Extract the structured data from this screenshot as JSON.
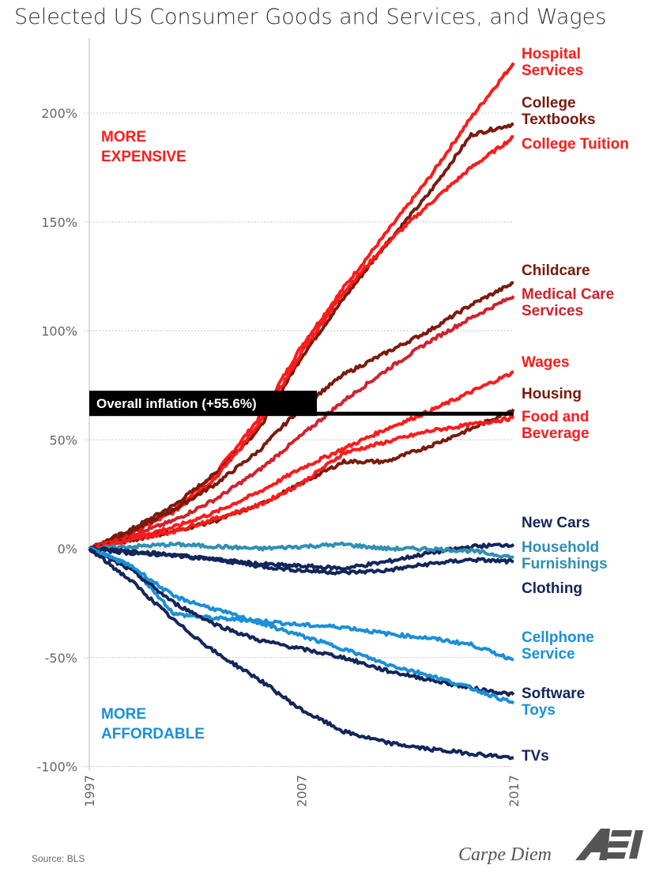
{
  "chart_data": {
    "type": "line",
    "title": "Selected US Consumer Goods and Services, and Wages",
    "xlabel": "",
    "ylabel": "",
    "x": [
      1997,
      1999,
      2001,
      2003,
      2005,
      2007,
      2009,
      2011,
      2013,
      2015,
      2017
    ],
    "xlim": [
      1997,
      2017
    ],
    "ylim": [
      -100,
      225
    ],
    "x_ticks": [
      "1997",
      "2007",
      "2017"
    ],
    "y_ticks": [
      {
        "value": 200,
        "label": "200%"
      },
      {
        "value": 150,
        "label": "150%"
      },
      {
        "value": 100,
        "label": "100%"
      },
      {
        "value": 50,
        "label": "50%"
      },
      {
        "value": 0,
        "label": "0%"
      },
      {
        "value": -50,
        "label": "-50%"
      },
      {
        "value": -100,
        "label": "-100%"
      }
    ],
    "grid": true,
    "series": [
      {
        "name": "Hospital Services",
        "label_lines": [
          "Hospital",
          "Services"
        ],
        "color": "#ff1a1a",
        "values": [
          0,
          8,
          18,
          35,
          60,
          93,
          120,
          145,
          170,
          198,
          223
        ]
      },
      {
        "name": "College Textbooks",
        "label_lines": [
          "College",
          "Textbooks"
        ],
        "color": "#7a1a0c",
        "values": [
          0,
          9,
          20,
          35,
          55,
          88,
          115,
          140,
          163,
          190,
          195
        ]
      },
      {
        "name": "College Tuition",
        "label_lines": [
          "College Tuition"
        ],
        "color": "#ff1a1a",
        "values": [
          0,
          7,
          17,
          33,
          57,
          90,
          118,
          140,
          158,
          175,
          189
        ]
      },
      {
        "name": "Childcare",
        "label_lines": [
          "Childcare"
        ],
        "color": "#7a1a0c",
        "values": [
          0,
          8,
          18,
          30,
          45,
          65,
          80,
          90,
          100,
          112,
          122
        ]
      },
      {
        "name": "Medical Care Services",
        "label_lines": [
          "Medical Care",
          "Services"
        ],
        "color": "#d0222d",
        "values": [
          0,
          6,
          13,
          23,
          36,
          52,
          68,
          82,
          95,
          106,
          116
        ]
      },
      {
        "name": "Wages",
        "label_lines": [
          "Wages"
        ],
        "color": "#ff1a1a",
        "values": [
          0,
          5,
          10,
          17,
          26,
          37,
          46,
          55,
          63,
          72,
          81
        ]
      },
      {
        "name": "Housing",
        "label_lines": [
          "Housing"
        ],
        "color": "#7a1a0c",
        "values": [
          0,
          4,
          8,
          13,
          20,
          30,
          40,
          40,
          47,
          55,
          64
        ]
      },
      {
        "name": "Food and Beverage",
        "label_lines": [
          "Food and",
          "Beverage"
        ],
        "color": "#ff1a1a",
        "values": [
          0,
          4,
          8,
          14,
          20,
          30,
          44,
          49,
          54,
          57,
          60
        ]
      },
      {
        "name": "New Cars",
        "label_lines": [
          "New Cars"
        ],
        "color": "#13265a",
        "values": [
          0,
          -2,
          -3,
          -5,
          -7,
          -8,
          -9,
          -6,
          -2,
          1,
          2
        ]
      },
      {
        "name": "Household Furnishings",
        "label_lines": [
          "Household",
          "Furnishings"
        ],
        "color": "#2f8fb3",
        "values": [
          0,
          1,
          2,
          1,
          0,
          1,
          2,
          0,
          0,
          -1,
          -4
        ]
      },
      {
        "name": "Clothing",
        "label_lines": [
          "Clothing"
        ],
        "color": "#13265a",
        "values": [
          0,
          -1,
          -3,
          -5,
          -8,
          -10,
          -11,
          -10,
          -7,
          -5,
          -6
        ]
      },
      {
        "name": "Cellphone Service",
        "label_lines": [
          "Cellphone",
          "Service"
        ],
        "color": "#1b8fd6",
        "values": [
          0,
          -8,
          -30,
          -32,
          -33,
          -35,
          -36,
          -39,
          -41,
          -44,
          -51
        ]
      },
      {
        "name": "Software",
        "label_lines": [
          "Software"
        ],
        "color": "#13265a",
        "values": [
          0,
          -10,
          -25,
          -35,
          -42,
          -46,
          -50,
          -56,
          -60,
          -64,
          -67
        ]
      },
      {
        "name": "Toys",
        "label_lines": [
          "Toys"
        ],
        "color": "#1b8fd6",
        "values": [
          0,
          -8,
          -22,
          -28,
          -34,
          -40,
          -46,
          -53,
          -58,
          -64,
          -71
        ]
      },
      {
        "name": "TVs",
        "label_lines": [
          "TVs"
        ],
        "color": "#13265a",
        "values": [
          0,
          -15,
          -33,
          -48,
          -60,
          -74,
          -84,
          -89,
          -92,
          -94,
          -96
        ]
      }
    ],
    "inflation": {
      "label": "Overall inflation (+55.6%)",
      "value": 55.6,
      "line_level": 62
    },
    "annotations": {
      "expensive": {
        "lines": [
          "MORE",
          "EXPENSIVE"
        ],
        "color": "#ff1a1a"
      },
      "affordable": {
        "lines": [
          "MORE",
          "AFFORDABLE"
        ],
        "color": "#1b8fd6"
      }
    }
  },
  "footer": {
    "source": "Source:  BLS",
    "brand": "Carpe Diem",
    "logo_text": "AEI"
  }
}
